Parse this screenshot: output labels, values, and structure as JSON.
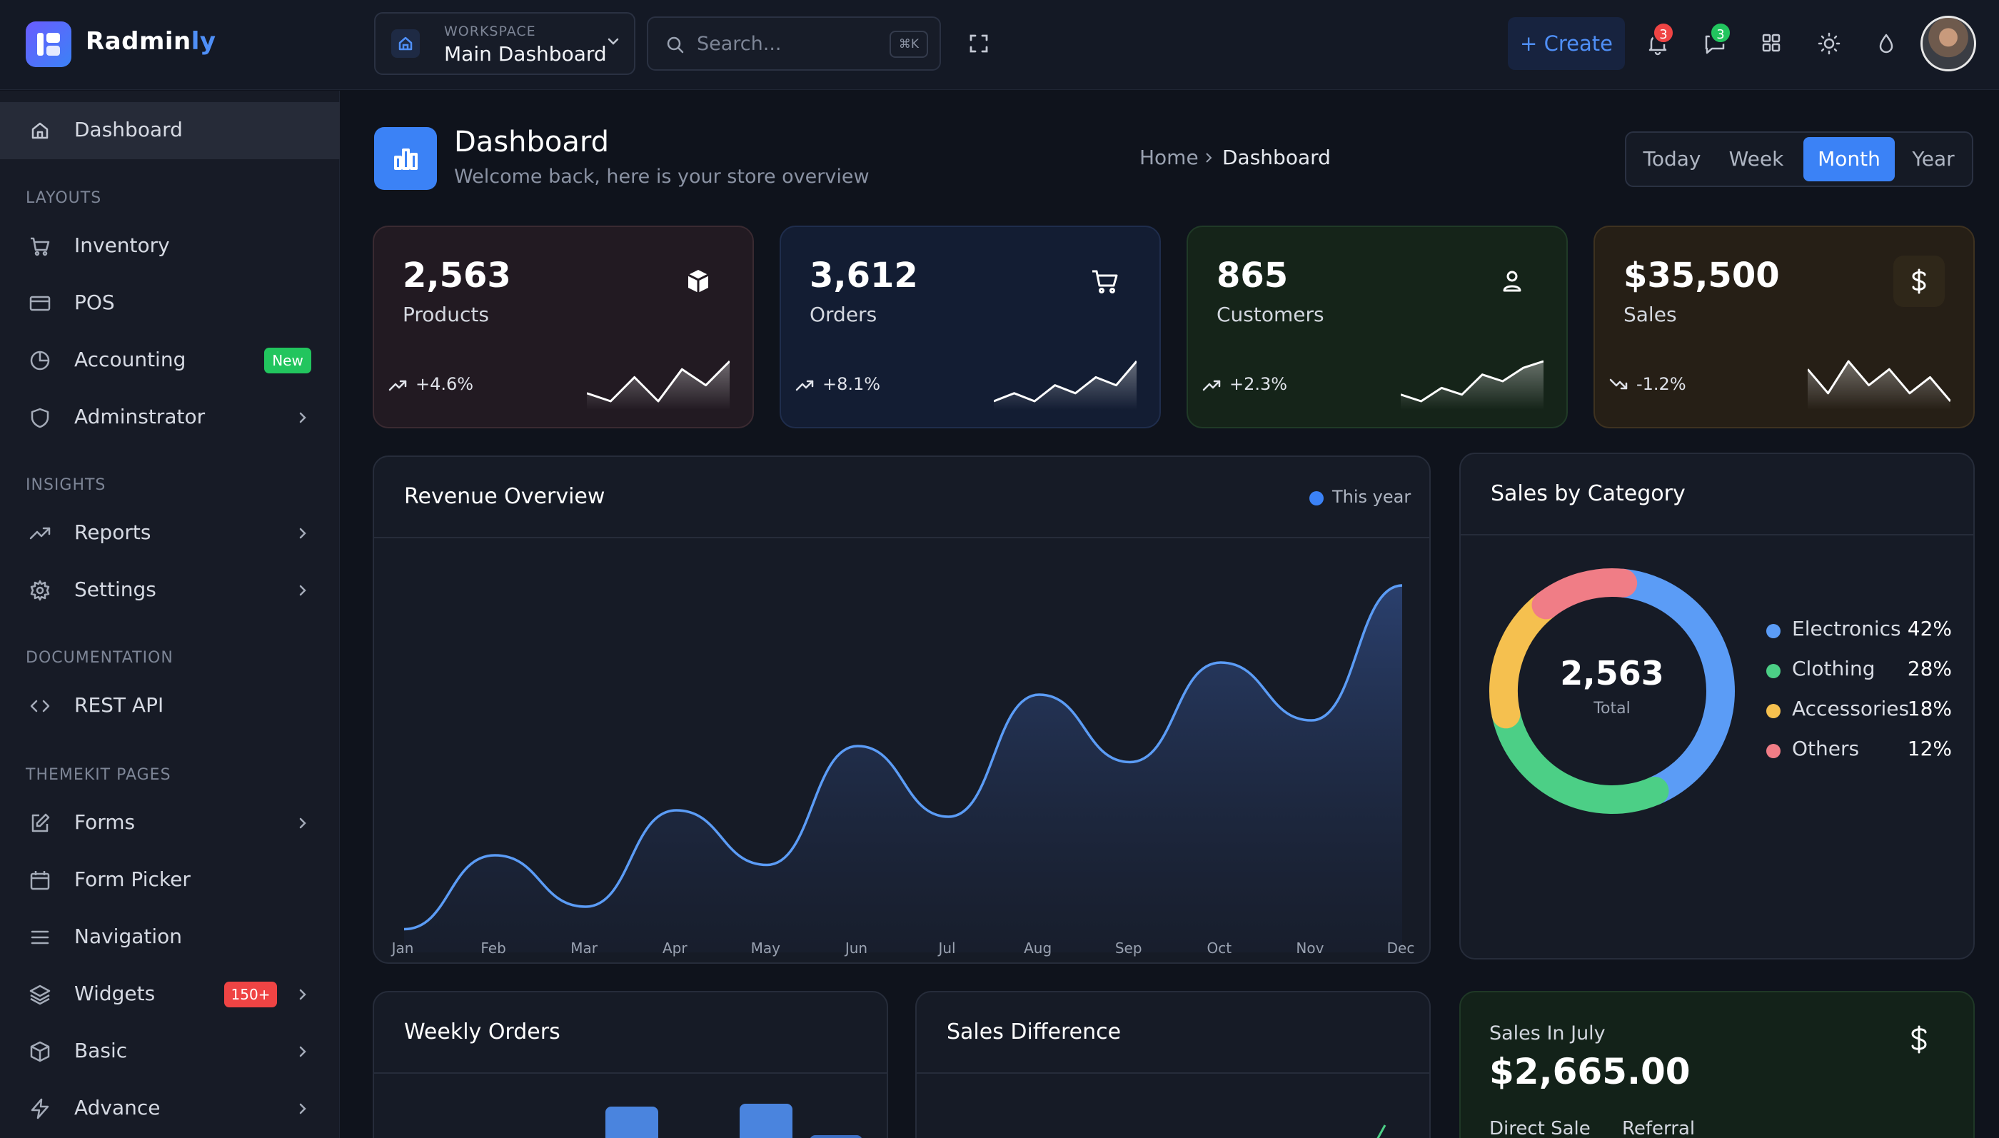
{
  "app": {
    "name_main": "Radmin",
    "name_accent": "ly"
  },
  "workspace": {
    "label": "WORKSPACE",
    "value": "Main Dashboard"
  },
  "search": {
    "placeholder": "Search...",
    "shortcut": "⌘K"
  },
  "toolbar": {
    "create_label": "+ Create",
    "notifications_count": "3",
    "messages_count": "3"
  },
  "colors": {
    "accent": "#3b82f6",
    "badge_red": "#ef4444",
    "badge_green": "#22c55e",
    "new_tag": "#22c55e",
    "count_tag": "#ef4444"
  },
  "sidebar": {
    "items": [
      {
        "label": "Dashboard",
        "icon": "home-icon"
      },
      {
        "label": "Inventory",
        "icon": "cart-icon"
      },
      {
        "label": "POS",
        "icon": "credit-card-icon"
      },
      {
        "label": "Accounting",
        "icon": "pie-chart-icon",
        "tag": "New"
      },
      {
        "label": "Adminstrator",
        "icon": "shield-icon"
      },
      {
        "label": "Reports",
        "icon": "trending-icon"
      },
      {
        "label": "Settings",
        "icon": "gear-icon"
      },
      {
        "label": "REST API",
        "icon": "code-icon"
      },
      {
        "label": "Forms",
        "icon": "edit-icon"
      },
      {
        "label": "Form Picker",
        "icon": "calendar-icon"
      },
      {
        "label": "Navigation",
        "icon": "menu-icon"
      },
      {
        "label": "Widgets",
        "icon": "layers-icon",
        "tag": "150+"
      },
      {
        "label": "Basic",
        "icon": "box-icon"
      },
      {
        "label": "Advance",
        "icon": "zap-icon"
      }
    ],
    "sections": [
      "LAYOUTS",
      "INSIGHTS",
      "DOCUMENTATION",
      "THEMEKIT PAGES"
    ]
  },
  "header": {
    "title": "Dashboard",
    "subtitle": "Welcome back, here is your store overview",
    "breadcrumb": [
      "Home",
      "Dashboard"
    ],
    "periods": [
      "Today",
      "Week",
      "Month",
      "Year"
    ],
    "active_period": "Month"
  },
  "stats": [
    {
      "value": "2,563",
      "label": "Products",
      "change": "+4.6%",
      "trend": "up",
      "icon": "box-icon",
      "spark": [
        3,
        2,
        5,
        2,
        6,
        4,
        7
      ]
    },
    {
      "value": "3,612",
      "label": "Orders",
      "change": "+8.1%",
      "trend": "up",
      "icon": "cart-icon",
      "spark": [
        2,
        3,
        2,
        4,
        3,
        5,
        4,
        7
      ]
    },
    {
      "value": "865",
      "label": "Customers",
      "change": "+2.3%",
      "trend": "up",
      "icon": "user-icon",
      "spark": [
        2,
        1,
        3,
        2,
        5,
        4,
        6,
        7
      ]
    },
    {
      "value": "$35,500",
      "label": "Sales",
      "change": "-1.2%",
      "trend": "down",
      "icon": "dollar-icon",
      "spark": [
        6,
        3,
        7,
        4,
        6,
        3,
        5,
        2
      ]
    }
  ],
  "revenue": {
    "title": "Revenue Overview",
    "legend": "This year",
    "chart_data": {
      "type": "area",
      "categories": [
        "Jan",
        "Feb",
        "Mar",
        "Apr",
        "May",
        "Jun",
        "Jul",
        "Aug",
        "Sep",
        "Oct",
        "Nov",
        "Dec"
      ],
      "series": [
        {
          "name": "This year",
          "values": [
            5,
            28,
            12,
            42,
            25,
            62,
            40,
            78,
            57,
            88,
            70,
            112
          ]
        }
      ],
      "ylim": [
        0,
        120
      ],
      "grid": false,
      "legend_position": "top-right"
    }
  },
  "category": {
    "title": "Sales by Category",
    "total": "2,563",
    "total_label": "Total",
    "chart_data": {
      "type": "pie",
      "categories": [
        "Electronics",
        "Clothing",
        "Accessories",
        "Others"
      ],
      "values": [
        42,
        28,
        18,
        12
      ],
      "colors": [
        "#5b9cf6",
        "#4ccf86",
        "#f5c04f",
        "#f07d86"
      ],
      "labels": [
        "42%",
        "28%",
        "18%",
        "12%"
      ]
    }
  },
  "weekly": {
    "title": "Weekly Orders"
  },
  "difference": {
    "title": "Sales Difference"
  },
  "july": {
    "title": "Sales In July",
    "amount": "$2,665.00",
    "tabs": [
      "Direct Sale",
      "Referral"
    ]
  }
}
